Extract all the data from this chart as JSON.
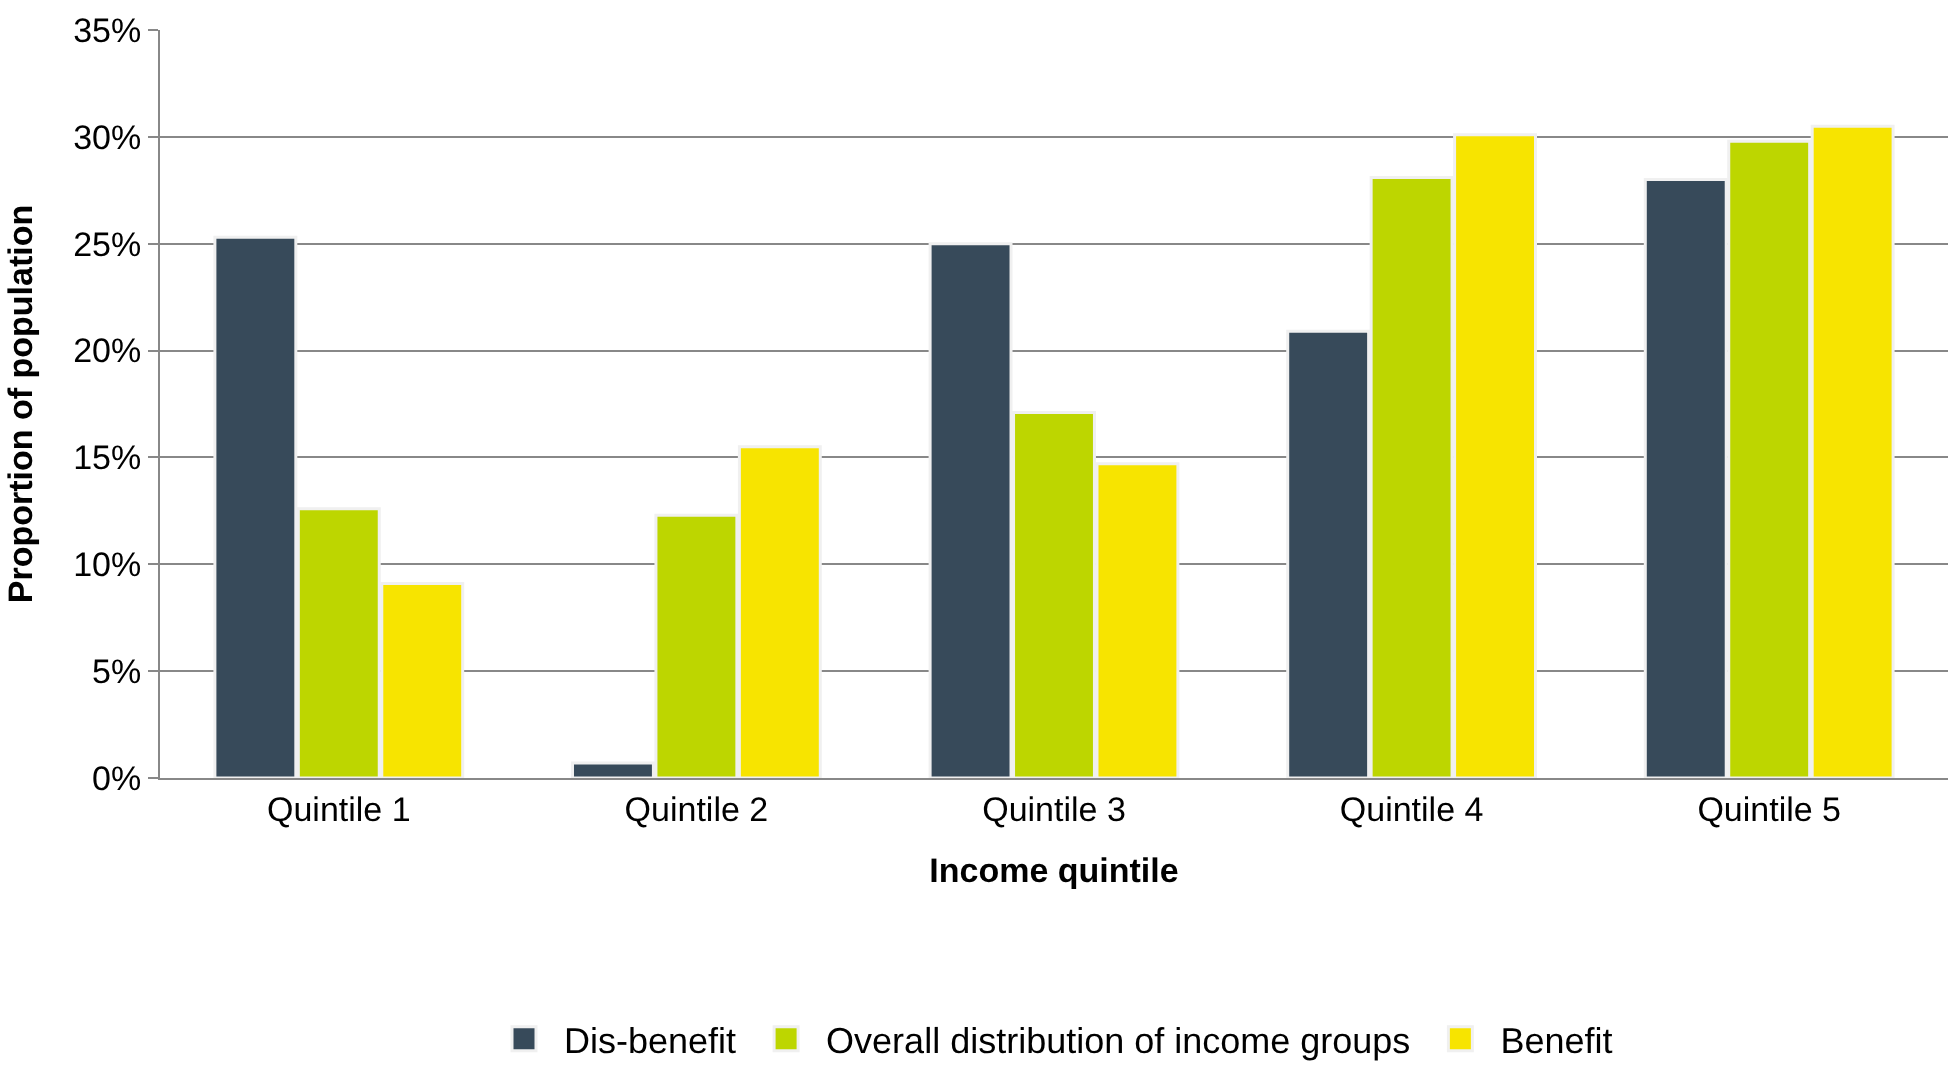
{
  "chart_data": {
    "type": "bar",
    "xlabel": "Income quintile",
    "ylabel": "Proportion of population",
    "categories": [
      "Quintile 1",
      "Quintile 2",
      "Quintile 3",
      "Quintile 4",
      "Quintile 5"
    ],
    "series": [
      {
        "name": "Dis-benefit",
        "color": "#374a5a",
        "values": [
          25.3,
          0.7,
          25.0,
          20.9,
          28.0
        ]
      },
      {
        "name": "Overall distribution of income groups",
        "color": "#bdd600",
        "values": [
          12.6,
          12.3,
          17.1,
          28.1,
          29.8
        ]
      },
      {
        "name": "Benefit",
        "color": "#f7e400",
        "values": [
          9.1,
          15.5,
          14.7,
          30.1,
          30.5
        ]
      }
    ],
    "ylim": [
      0,
      35
    ],
    "yticks": [
      {
        "value": 0,
        "label": "0%"
      },
      {
        "value": 5,
        "label": "5%"
      },
      {
        "value": 10,
        "label": "10%"
      },
      {
        "value": 15,
        "label": "15%"
      },
      {
        "value": 20,
        "label": "20%"
      },
      {
        "value": 25,
        "label": "25%"
      },
      {
        "value": 30,
        "label": "30%"
      },
      {
        "value": 35,
        "label": "35%"
      }
    ],
    "grid": "y",
    "legend": "bottom"
  }
}
